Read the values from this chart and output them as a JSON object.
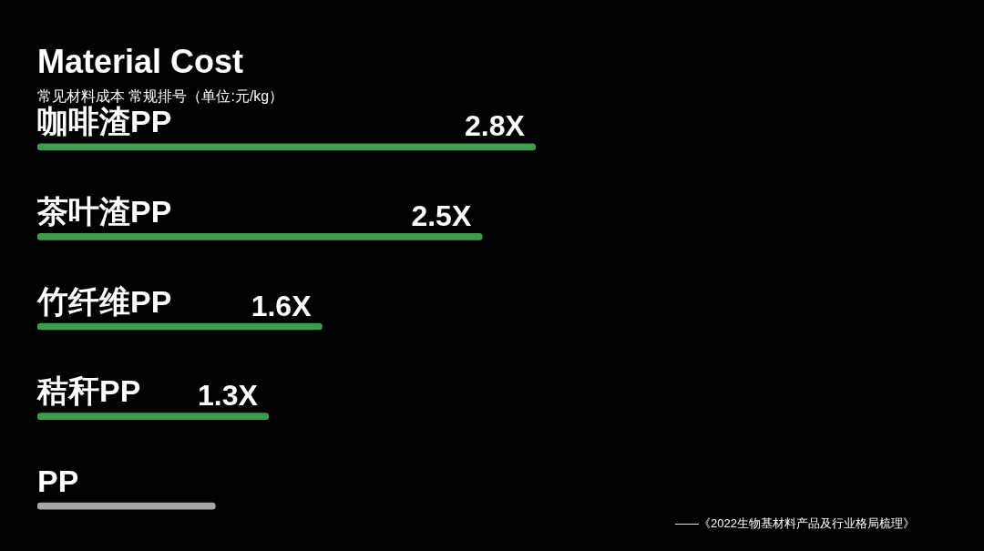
{
  "chart_data": {
    "type": "bar",
    "orientation": "horizontal",
    "title": "Material Cost",
    "subtitle": "常见材料成本 常规排号（单位:元/kg）",
    "categories": [
      "咖啡渣PP",
      "茶叶渣PP",
      "竹纤维PP",
      "秸秆PP",
      "PP"
    ],
    "values": [
      2.8,
      2.5,
      1.6,
      1.3,
      1
    ],
    "colors": [
      "#3f9c4c",
      "#3f9c4c",
      "#3f9c4c",
      "#3f9c4c",
      "#a6a6a6"
    ],
    "value_labels": [
      "2.8X",
      "2.5X",
      "1.6X",
      "1.3X",
      null
    ],
    "annotations": [
      "——《2022生物基材料产品及行业格局梳理》"
    ]
  }
}
